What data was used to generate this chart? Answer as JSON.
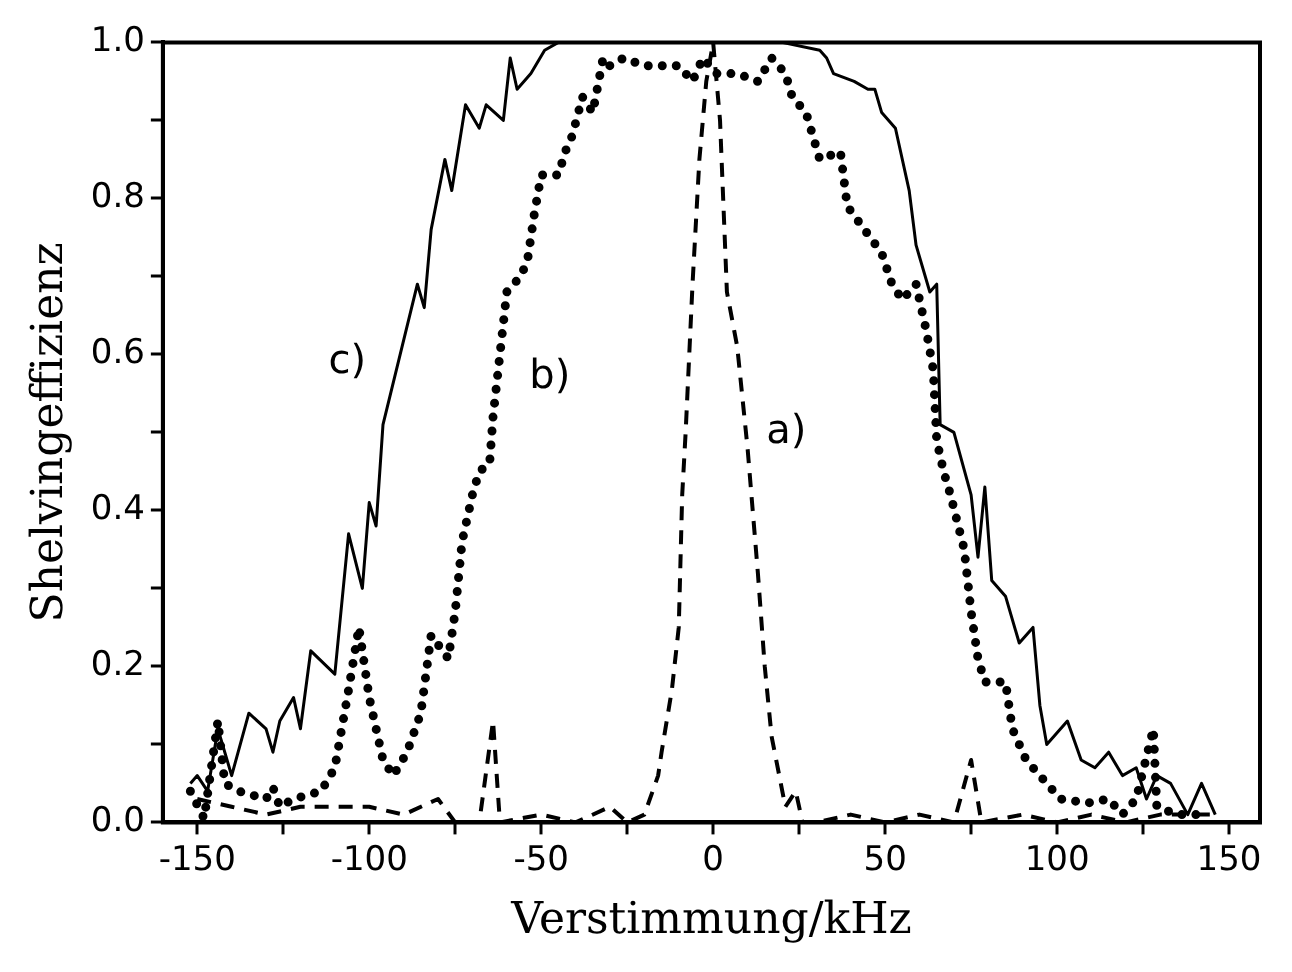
{
  "chart_data": {
    "type": "line",
    "xlabel": "Verstimmung/kHz",
    "ylabel": "Shelvingeffizienz",
    "xlim": [
      -160,
      159
    ],
    "ylim": [
      0,
      1
    ],
    "xticks": [
      -150,
      {
        "value": -125,
        "label": null
      },
      -100,
      {
        "value": -75,
        "label": null
      },
      -50,
      {
        "value": -25,
        "label": null
      },
      0,
      {
        "value": 25,
        "label": null
      },
      50,
      {
        "value": 75,
        "label": null
      },
      100,
      {
        "value": 125,
        "label": null
      },
      150
    ],
    "yticks": [
      {
        "value": 0,
        "label": "0.0"
      },
      {
        "value": 0.1,
        "label": null
      },
      0.2,
      {
        "value": 0.3,
        "label": null
      },
      0.4,
      {
        "value": 0.5,
        "label": null
      },
      0.6,
      {
        "value": 0.7,
        "label": null
      },
      0.8,
      {
        "value": 0.9,
        "label": null
      },
      {
        "value": 1,
        "label": "1.0"
      }
    ],
    "grid": false,
    "legend": false,
    "marker": "none",
    "series": [
      {
        "color": "#000000",
        "line_style": "dashed",
        "x": [
          -150,
          -140,
          -130,
          -120,
          -100,
          -90,
          -80,
          -75,
          -68,
          -64,
          -62,
          -50,
          -40,
          -30,
          -25,
          -20,
          -16,
          -15,
          -12,
          -10,
          -9,
          -8,
          -6,
          -4,
          -2,
          0,
          2,
          4,
          7,
          10,
          13,
          15,
          17,
          21,
          24,
          26,
          30,
          40,
          50,
          60,
          70,
          75,
          78,
          90,
          100,
          110,
          120,
          130,
          145
        ],
        "values": [
          0.03,
          0.02,
          0.01,
          0.02,
          0.02,
          0.01,
          0.03,
          0,
          0,
          0.13,
          0,
          0.01,
          0,
          0.02,
          0,
          0.01,
          0.06,
          0.09,
          0.17,
          0.25,
          0.42,
          0.5,
          0.69,
          0.85,
          0.95,
          1,
          0.9,
          0.68,
          0.61,
          0.48,
          0.32,
          0.2,
          0.11,
          0.02,
          0.04,
          0,
          0,
          0.01,
          0,
          0.01,
          0,
          0.08,
          0,
          0.01,
          0,
          0.01,
          0,
          0.01,
          0.01
        ]
      },
      {
        "color": "#000000",
        "line_style": "dotted",
        "x": [
          -152,
          -148,
          -144,
          -143,
          -142,
          -138,
          -130,
          -128,
          -126,
          -122,
          -114,
          -110,
          -106,
          -103,
          -100,
          -96,
          -93,
          -89,
          -85,
          -82,
          -77,
          -75,
          -73,
          -70,
          -68,
          -65,
          -64,
          -62,
          -60,
          -56,
          -54,
          -52,
          -50,
          -45,
          -43,
          -41,
          -38,
          -35,
          -32,
          -30,
          -26,
          -20,
          -16,
          -10,
          -6,
          -3,
          1,
          7,
          13,
          17,
          21,
          23,
          27,
          31,
          37,
          39,
          44,
          49,
          52,
          55,
          59,
          62,
          64,
          65,
          67,
          69,
          73,
          75,
          77,
          79,
          85,
          87,
          91,
          95,
          101,
          109,
          115,
          119,
          123,
          128,
          129,
          135,
          143
        ],
        "values": [
          0.04,
          0.005,
          0.13,
          0.09,
          0.05,
          0.04,
          0.03,
          0.045,
          0.02,
          0.03,
          0.04,
          0.07,
          0.17,
          0.25,
          0.16,
          0.08,
          0.06,
          0.09,
          0.14,
          0.24,
          0.21,
          0.27,
          0.36,
          0.42,
          0.45,
          0.46,
          0.52,
          0.6,
          0.68,
          0.7,
          0.72,
          0.78,
          0.83,
          0.83,
          0.86,
          0.88,
          0.93,
          0.91,
          0.98,
          0.97,
          0.98,
          0.97,
          0.97,
          0.97,
          0.95,
          0.98,
          0.96,
          0.96,
          0.95,
          0.98,
          0.96,
          0.93,
          0.91,
          0.85,
          0.86,
          0.79,
          0.76,
          0.73,
          0.69,
          0.67,
          0.69,
          0.63,
          0.58,
          0.49,
          0.45,
          0.42,
          0.35,
          0.27,
          0.21,
          0.18,
          0.18,
          0.12,
          0.08,
          0.06,
          0.03,
          0.025,
          0.03,
          0.01,
          0.03,
          0.12,
          0.02,
          0.01,
          0.01
        ]
      },
      {
        "color": "#000000",
        "line_style": "solid",
        "x": [
          -152,
          -150,
          -147,
          -144,
          -140,
          -135,
          -130,
          -128,
          -126,
          -122,
          -120,
          -117,
          -110,
          -106,
          -102,
          -100,
          -98,
          -96,
          -86,
          -84,
          -82,
          -78,
          -76,
          -72,
          -68,
          -66,
          -61,
          -59,
          -57,
          -53,
          -49,
          -45,
          -20,
          0,
          20,
          31,
          33,
          35,
          41,
          45,
          47,
          49,
          53,
          57,
          59,
          63,
          65,
          66,
          70,
          75,
          77,
          79,
          81,
          85,
          89,
          93,
          95,
          97,
          103,
          107,
          111,
          115,
          119,
          123,
          126,
          129,
          133,
          138,
          142,
          146
        ],
        "values": [
          0.05,
          0.06,
          0.04,
          0.12,
          0.06,
          0.14,
          0.12,
          0.09,
          0.13,
          0.16,
          0.12,
          0.22,
          0.19,
          0.37,
          0.3,
          0.41,
          0.38,
          0.51,
          0.69,
          0.66,
          0.76,
          0.85,
          0.81,
          0.92,
          0.89,
          0.92,
          0.9,
          0.98,
          0.94,
          0.96,
          0.99,
          1,
          1,
          1,
          1,
          0.99,
          0.98,
          0.96,
          0.95,
          0.94,
          0.94,
          0.91,
          0.89,
          0.81,
          0.74,
          0.68,
          0.69,
          0.51,
          0.5,
          0.42,
          0.34,
          0.43,
          0.31,
          0.29,
          0.23,
          0.25,
          0.15,
          0.1,
          0.13,
          0.08,
          0.07,
          0.09,
          0.06,
          0.07,
          0.03,
          0.06,
          0.05,
          0.01,
          0.05,
          0.01
        ]
      }
    ],
    "annotations": [
      "a)",
      "b)",
      "c)"
    ]
  }
}
